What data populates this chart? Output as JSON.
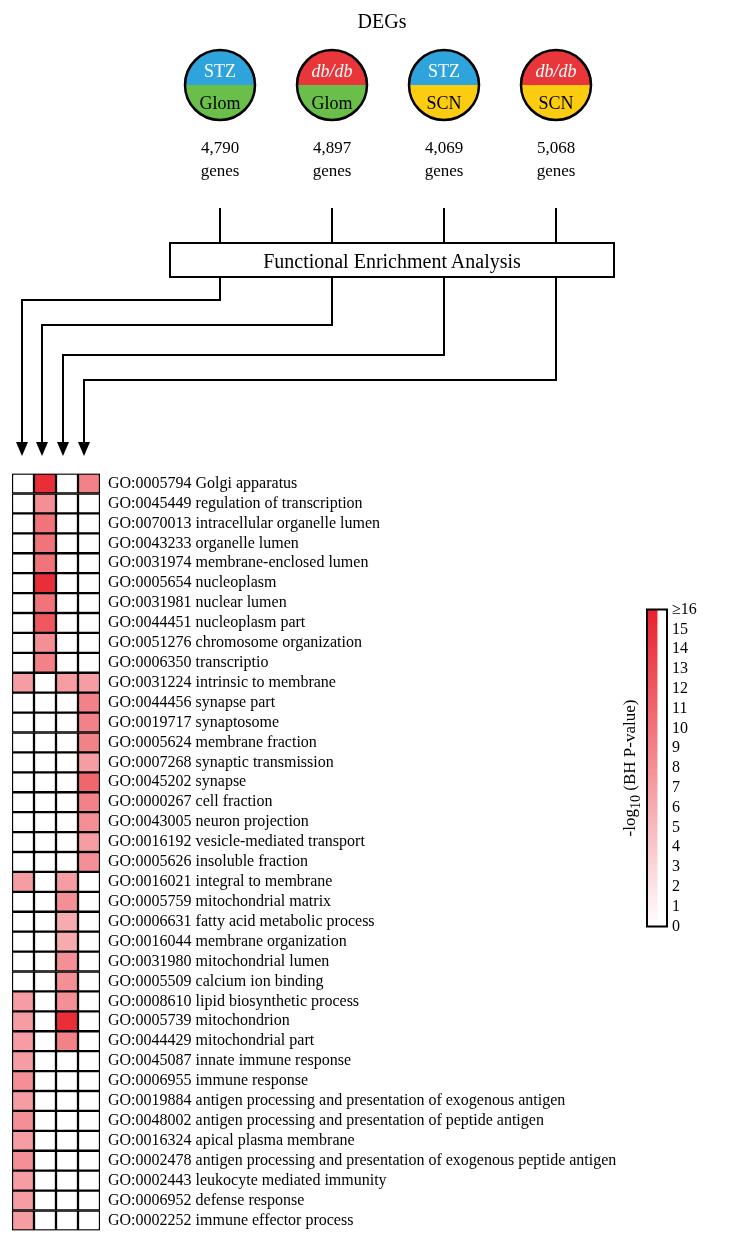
{
  "chart_data": {
    "type": "heatmap",
    "title": "DEGs",
    "annotations": [
      "STZ",
      "Glom",
      "4,790 genes",
      "db/db",
      "Glom",
      "4,897 genes",
      "STZ",
      "SCN",
      "4,069 genes",
      "db/db",
      "SCN",
      "5,068 genes",
      "Functional Enrichment Analysis"
    ],
    "categories": [
      null,
      null,
      null,
      null
    ],
    "y_categories": [
      "GO:0005794 Golgi apparatus",
      "GO:0045449 regulation of transcription",
      "GO:0070013 intracellular organelle lumen",
      "GO:0043233 organelle lumen",
      "GO:0031974 membrane-enclosed lumen",
      "GO:0005654 nucleoplasm",
      "GO:0031981 nuclear lumen",
      "GO:0044451 nucleoplasm part",
      "GO:0051276 chromosome organization",
      "GO:0006350 transcriptio",
      "GO:0031224 intrinsic to membrane",
      "GO:0044456 synapse part",
      "GO:0019717 synaptosome",
      "GO:0005624 membrane fraction",
      "GO:0007268 synaptic transmission",
      "GO:0045202 synapse",
      "GO:0000267 cell fraction",
      "GO:0043005 neuron projection",
      "GO:0016192 vesicle-mediated transport",
      "GO:0005626 insoluble fraction",
      "GO:0016021 integral to membrane",
      "GO:0005759 mitochondrial matrix",
      "GO:0006631 fatty acid metabolic process",
      "GO:0016044 membrane organization",
      "GO:0031980 mitochondrial lumen",
      "GO:0005509 calcium ion binding",
      "GO:0008610 lipid biosynthetic process",
      "GO:0005739 mitochondrion",
      "GO:0044429 mitochondrial part",
      "GO:0045087 innate immune response",
      "GO:0006955 immune response",
      "GO:0019884 antigen processing and presentation of exogenous antigen",
      "GO:0048002 antigen processing and presentation of peptide antigen",
      "GO:0016324 apical plasma membrane",
      "GO:0002478 antigen processing and presentation of exogenous peptide antigen",
      "GO:0002443 leukocyte mediated immunity",
      "GO:0006952 defense response",
      "GO:0002252 immune effector process"
    ],
    "cells": [
      [
        0,
        15,
        0,
        9
      ],
      [
        0,
        8,
        0,
        0
      ],
      [
        0,
        10,
        0,
        0
      ],
      [
        0,
        10,
        0,
        0
      ],
      [
        0,
        10,
        0,
        0
      ],
      [
        0,
        15,
        0,
        0
      ],
      [
        0,
        10,
        0,
        0
      ],
      [
        0,
        12,
        0,
        0
      ],
      [
        0,
        8,
        0,
        0
      ],
      [
        0,
        9,
        0,
        0
      ],
      [
        7,
        0,
        7,
        7
      ],
      [
        0,
        0,
        0,
        9
      ],
      [
        0,
        0,
        0,
        9
      ],
      [
        0,
        0,
        0,
        9
      ],
      [
        0,
        0,
        0,
        7
      ],
      [
        0,
        0,
        0,
        11
      ],
      [
        0,
        0,
        0,
        9
      ],
      [
        0,
        0,
        0,
        8
      ],
      [
        0,
        0,
        0,
        7
      ],
      [
        0,
        0,
        0,
        8
      ],
      [
        7,
        0,
        7,
        0
      ],
      [
        0,
        0,
        8,
        0
      ],
      [
        0,
        0,
        6,
        0
      ],
      [
        0,
        0,
        6,
        0
      ],
      [
        0,
        0,
        8,
        0
      ],
      [
        0,
        0,
        8,
        0
      ],
      [
        7,
        0,
        8,
        0
      ],
      [
        7,
        0,
        15,
        0
      ],
      [
        7,
        0,
        9,
        0
      ],
      [
        7,
        0,
        0,
        0
      ],
      [
        8,
        0,
        0,
        0
      ],
      [
        7,
        0,
        0,
        0
      ],
      [
        8,
        0,
        0,
        0
      ],
      [
        7,
        0,
        0,
        0
      ],
      [
        8,
        0,
        0,
        0
      ],
      [
        7,
        0,
        0,
        0
      ],
      [
        7,
        0,
        0,
        0
      ],
      [
        7,
        0,
        0,
        0
      ]
    ],
    "clim": [
      0,
      16
    ],
    "cticks": [
      0,
      1,
      2,
      3,
      4,
      5,
      6,
      7,
      8,
      9,
      10,
      11,
      12,
      13,
      14,
      15,
      {
        "value": 16,
        "label": "≥16"
      }
    ],
    "clabel": "-log$_{10}$ (BH P-value)"
  }
}
